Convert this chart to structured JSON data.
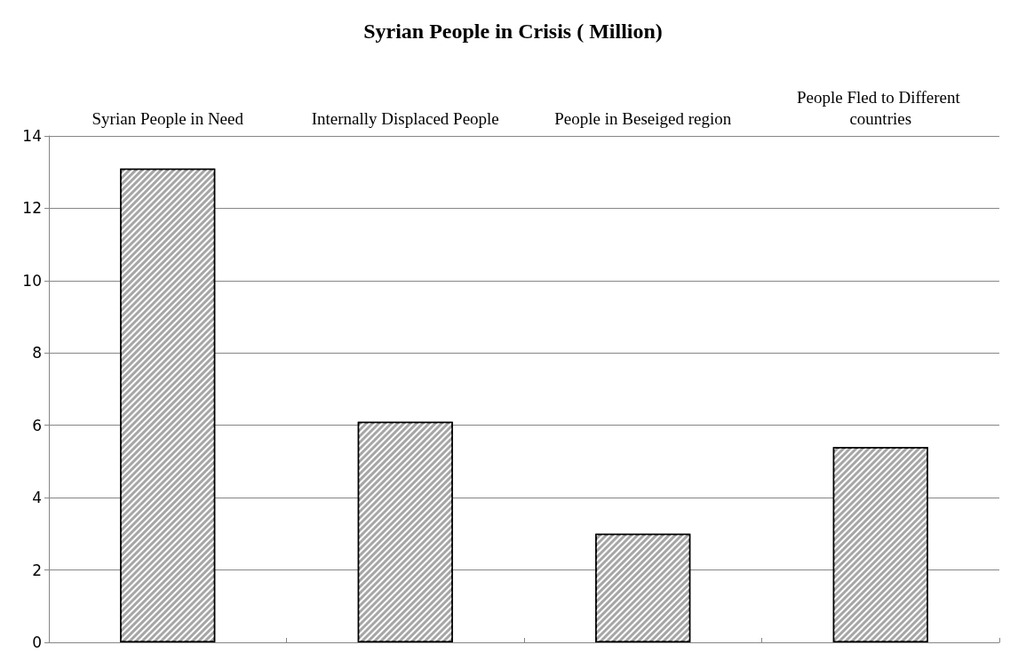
{
  "chart_data": {
    "type": "bar",
    "title": "Syrian People in Crisis ( Million)",
    "categories": [
      "Syrian People in Need",
      "Internally Displaced People",
      "People in Beseiged region",
      "People Fled to Different countries"
    ],
    "values": [
      13.1,
      6.1,
      3.0,
      5.4
    ],
    "color": "#a6a6a6",
    "ylim": [
      0,
      14
    ],
    "yticks": [
      0,
      2,
      4,
      6,
      8,
      10,
      12,
      14
    ],
    "grid": "y"
  }
}
